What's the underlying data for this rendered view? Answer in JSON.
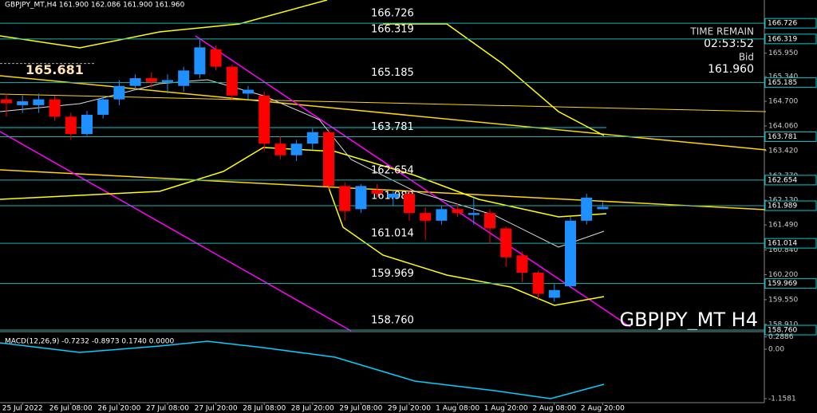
{
  "header": {
    "title": "GBPJPY_MT,H4 161.900 162.086 161.900 161.960"
  },
  "info": {
    "time_label": "TIME REMAIN",
    "time": "02:53:52",
    "price_label": "Bid",
    "price": "161.960"
  },
  "chart_data": {
    "type": "candlestick",
    "categories": [
      null,
      "25 Jul 2022",
      null,
      null,
      "26 Jul 08:00",
      null,
      null,
      "26 Jul 20:00",
      null,
      null,
      "27 Jul 08:00",
      null,
      null,
      "27 Jul 20:00",
      null,
      null,
      "28 Jul 08:00",
      null,
      null,
      "28 Jul 20:00",
      null,
      null,
      "29 Jul 08:00",
      null,
      null,
      "29 Jul 20:00",
      null,
      null,
      "1 Aug 08:00",
      null,
      null,
      "1 Aug 20:00",
      null,
      null,
      "2 Aug 08:00",
      null,
      null,
      "2 Aug 20:00"
    ],
    "open": [
      164.75,
      164.6,
      164.6,
      164.75,
      164.3,
      163.85,
      164.35,
      164.75,
      165.1,
      165.3,
      165.2,
      165.1,
      165.4,
      166.05,
      165.6,
      164.9,
      164.85,
      163.6,
      163.3,
      163.6,
      163.9,
      162.5,
      161.9,
      162.4,
      162.2,
      162.3,
      161.8,
      161.6,
      161.9,
      161.75,
      161.8,
      161.4,
      160.7,
      160.25,
      159.6,
      159.9,
      161.6,
      161.9
    ],
    "high": [
      164.9,
      164.85,
      164.9,
      164.85,
      164.4,
      164.45,
      164.85,
      165.25,
      165.4,
      165.45,
      165.4,
      165.6,
      166.3,
      166.15,
      165.65,
      165.1,
      164.95,
      163.8,
      163.7,
      164.0,
      164.0,
      162.6,
      162.55,
      162.55,
      162.4,
      162.4,
      161.95,
      162.0,
      162.05,
      162.2,
      161.9,
      161.45,
      160.8,
      160.3,
      159.95,
      161.7,
      162.3,
      162.086
    ],
    "low": [
      164.3,
      164.4,
      164.4,
      164.2,
      163.7,
      163.8,
      164.25,
      164.6,
      165.0,
      165.05,
      164.9,
      164.95,
      165.3,
      165.5,
      164.75,
      164.75,
      163.4,
      163.2,
      163.15,
      163.45,
      162.4,
      161.6,
      161.8,
      162.2,
      162.0,
      161.6,
      161.1,
      161.5,
      161.7,
      161.5,
      161.0,
      160.4,
      160.0,
      159.55,
      159.5,
      159.85,
      161.5,
      161.9
    ],
    "close": [
      164.65,
      164.7,
      164.75,
      164.3,
      163.85,
      164.35,
      164.75,
      165.1,
      165.3,
      165.2,
      165.25,
      165.5,
      166.1,
      165.6,
      164.85,
      165.0,
      163.6,
      163.3,
      163.6,
      163.9,
      162.5,
      161.85,
      162.5,
      162.3,
      162.3,
      161.8,
      161.6,
      161.9,
      161.8,
      161.8,
      161.4,
      160.65,
      160.25,
      159.7,
      159.8,
      161.6,
      162.2,
      161.96
    ],
    "up_color": "#1e90ff",
    "down_color": "#ff0000",
    "ylim": [
      158.74,
      167.33
    ],
    "yticks": [
      {
        "value": 165.95,
        "label": "165.950"
      },
      {
        "value": 165.34,
        "label": "165.340"
      },
      {
        "value": 164.7,
        "label": "164.700"
      },
      {
        "value": 164.06,
        "label": "164.060"
      },
      {
        "value": 163.42,
        "label": "163.420"
      },
      {
        "value": 162.77,
        "label": "162.770"
      },
      {
        "value": 162.13,
        "label": "162.130"
      },
      {
        "value": 161.49,
        "label": "161.490"
      },
      {
        "value": 160.84,
        "label": "160.840"
      },
      {
        "value": 160.2,
        "label": "160.200"
      },
      {
        "value": 159.55,
        "label": "159.550"
      },
      {
        "value": 158.91,
        "label": "158.910"
      }
    ],
    "levels": [
      166.726,
      166.319,
      165.185,
      163.781,
      162.654,
      161.989,
      161.014,
      159.969,
      {
        "value": 158.76,
        "label": "158.760"
      }
    ],
    "annotation": 165.681,
    "watermark": "GBPJPY_MT H4",
    "macd": {
      "title": "MACD(12,26,9) -0.7232 -0.8973 0.1740 0.0000",
      "ylim": [
        -1.252,
        0.374
      ],
      "yticks": [
        0.2886,
        {
          "value": 0,
          "label": "0.00"
        },
        -1.1581
      ]
    }
  }
}
